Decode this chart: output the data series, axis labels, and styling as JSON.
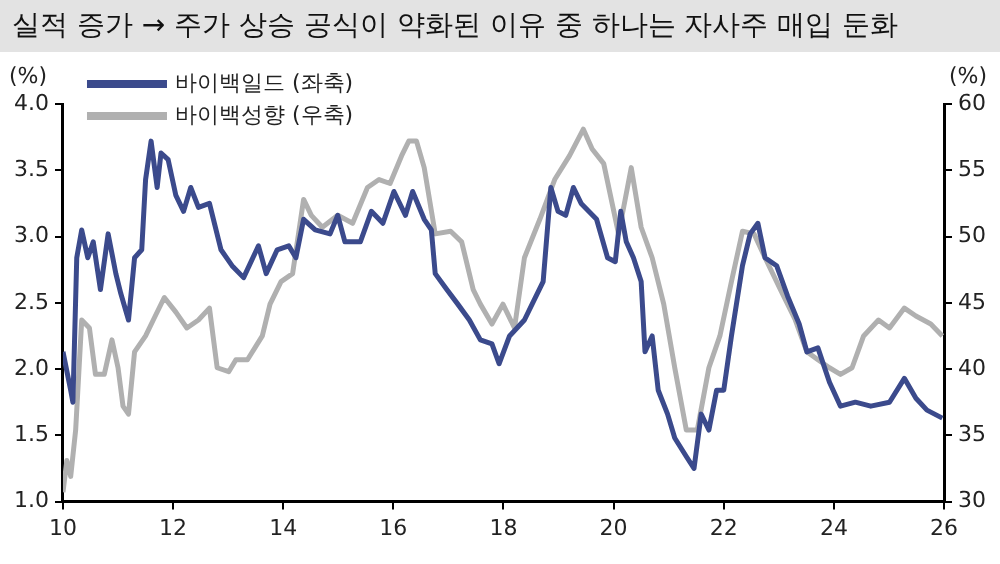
{
  "chart_data": {
    "type": "line",
    "title": "실적 증가 → 주가 상승 공식이 약화된 이유 중 하나는 자사주 매입 둔화",
    "ylabel": "(%)",
    "y2label": "(%)",
    "xlim": [
      10,
      26
    ],
    "xticks": [
      10,
      12,
      14,
      16,
      18,
      20,
      22,
      24,
      26
    ],
    "ylim": [
      1,
      4
    ],
    "yticks": [
      {
        "value": 1,
        "label": "1.0"
      },
      {
        "value": 1.5,
        "label": "1.5"
      },
      {
        "value": 2,
        "label": "2.0"
      },
      {
        "value": 2.5,
        "label": "2.5"
      },
      {
        "value": 3,
        "label": "3.0"
      },
      {
        "value": 3.5,
        "label": "3.5"
      },
      {
        "value": 4,
        "label": "4.0"
      }
    ],
    "y2lim": [
      30,
      60
    ],
    "y2ticks": [
      30,
      35,
      40,
      45,
      50,
      55,
      60
    ],
    "legend": "top left",
    "grid": false,
    "marker": "none",
    "line_style": "solid",
    "series": [
      {
        "name": "바이백일드 (좌축)",
        "color": "#3b4a8c",
        "axis": "y",
        "x": [
          10.0,
          10.14,
          10.18,
          10.25,
          10.34,
          10.45,
          10.55,
          10.68,
          10.82,
          10.96,
          11.05,
          11.19,
          11.3,
          11.43,
          11.5,
          11.6,
          11.71,
          11.78,
          11.91,
          12.05,
          12.19,
          12.32,
          12.46,
          12.66,
          12.87,
          13.07,
          13.28,
          13.55,
          13.69,
          13.89,
          14.1,
          14.23,
          14.37,
          14.58,
          14.85,
          14.99,
          15.12,
          15.4,
          15.6,
          15.81,
          16.01,
          16.22,
          16.35,
          16.56,
          16.69,
          16.76,
          16.97,
          17.17,
          17.38,
          17.58,
          17.79,
          17.92,
          18.11,
          18.38,
          18.52,
          18.72,
          18.86,
          18.99,
          19.13,
          19.27,
          19.41,
          19.69,
          19.89,
          20.03,
          20.13,
          20.23,
          20.36,
          20.5,
          20.57,
          20.7,
          20.81,
          20.98,
          21.11,
          21.32,
          21.46,
          21.59,
          21.73,
          21.87,
          22.0,
          22.14,
          22.34,
          22.48,
          22.62,
          22.75,
          22.96,
          23.16,
          23.37,
          23.51,
          23.71,
          23.92,
          24.12,
          24.39,
          24.67,
          25.01,
          25.28,
          25.49,
          25.69,
          25.97
        ],
        "values": [
          2.13,
          1.84,
          1.75,
          2.84,
          3.05,
          2.84,
          2.96,
          2.6,
          3.02,
          2.72,
          2.57,
          2.37,
          2.84,
          2.9,
          3.43,
          3.72,
          3.37,
          3.63,
          3.58,
          3.31,
          3.19,
          3.37,
          3.22,
          3.25,
          2.9,
          2.78,
          2.69,
          2.93,
          2.72,
          2.9,
          2.93,
          2.84,
          3.13,
          3.05,
          3.02,
          3.16,
          2.96,
          2.96,
          3.19,
          3.1,
          3.34,
          3.16,
          3.34,
          3.13,
          3.05,
          2.72,
          2.6,
          2.49,
          2.37,
          2.22,
          2.19,
          2.04,
          2.25,
          2.37,
          2.49,
          2.66,
          3.37,
          3.19,
          3.16,
          3.37,
          3.25,
          3.13,
          2.84,
          2.81,
          3.19,
          2.96,
          2.84,
          2.66,
          2.13,
          2.25,
          1.84,
          1.66,
          1.48,
          1.34,
          1.25,
          1.66,
          1.54,
          1.84,
          1.84,
          2.25,
          2.78,
          3.02,
          3.1,
          2.84,
          2.78,
          2.55,
          2.34,
          2.13,
          2.16,
          1.9,
          1.72,
          1.75,
          1.72,
          1.75,
          1.93,
          1.78,
          1.69,
          1.63
        ]
      },
      {
        "name": "바이백성향 (우축)",
        "color": "#b0b0b0",
        "axis": "y2",
        "x": [
          10.0,
          10.07,
          10.14,
          10.23,
          10.34,
          10.48,
          10.59,
          10.75,
          10.89,
          11.0,
          11.09,
          11.19,
          11.3,
          11.5,
          11.64,
          11.84,
          12.05,
          12.25,
          12.46,
          12.66,
          12.8,
          13.01,
          13.14,
          13.35,
          13.62,
          13.76,
          13.96,
          14.17,
          14.37,
          14.51,
          14.71,
          14.99,
          15.26,
          15.53,
          15.74,
          15.94,
          16.15,
          16.28,
          16.42,
          16.56,
          16.76,
          17.04,
          17.24,
          17.45,
          17.58,
          17.79,
          17.99,
          18.2,
          18.38,
          18.66,
          18.93,
          19.2,
          19.45,
          19.61,
          19.82,
          20.09,
          20.32,
          20.5,
          20.7,
          20.91,
          21.11,
          21.32,
          21.52,
          21.73,
          21.93,
          22.14,
          22.34,
          22.55,
          22.75,
          23.03,
          23.3,
          23.51,
          23.71,
          23.92,
          24.12,
          24.33,
          24.54,
          24.81,
          25.01,
          25.28,
          25.49,
          25.76,
          25.97
        ],
        "values": [
          30.7,
          33.1,
          31.9,
          35.4,
          43.7,
          43.1,
          39.6,
          39.6,
          42.2,
          40.1,
          37.2,
          36.6,
          41.3,
          42.5,
          43.7,
          45.4,
          44.3,
          43.1,
          43.7,
          44.6,
          40.1,
          39.8,
          40.7,
          40.7,
          42.5,
          44.9,
          46.6,
          47.2,
          52.8,
          51.6,
          50.7,
          51.6,
          51.0,
          53.7,
          54.3,
          54.0,
          56.1,
          57.2,
          57.2,
          55.2,
          50.2,
          50.4,
          49.6,
          46.0,
          44.9,
          43.4,
          44.9,
          43.1,
          48.4,
          51.3,
          54.3,
          56.1,
          58.1,
          56.6,
          55.5,
          50.2,
          55.2,
          50.7,
          48.4,
          44.9,
          40.1,
          35.4,
          35.4,
          40.1,
          42.5,
          46.6,
          50.4,
          50.2,
          48.4,
          46.0,
          43.7,
          41.3,
          40.7,
          40.1,
          39.6,
          40.1,
          42.5,
          43.7,
          43.1,
          44.6,
          44.0,
          43.4,
          42.5
        ]
      }
    ]
  }
}
